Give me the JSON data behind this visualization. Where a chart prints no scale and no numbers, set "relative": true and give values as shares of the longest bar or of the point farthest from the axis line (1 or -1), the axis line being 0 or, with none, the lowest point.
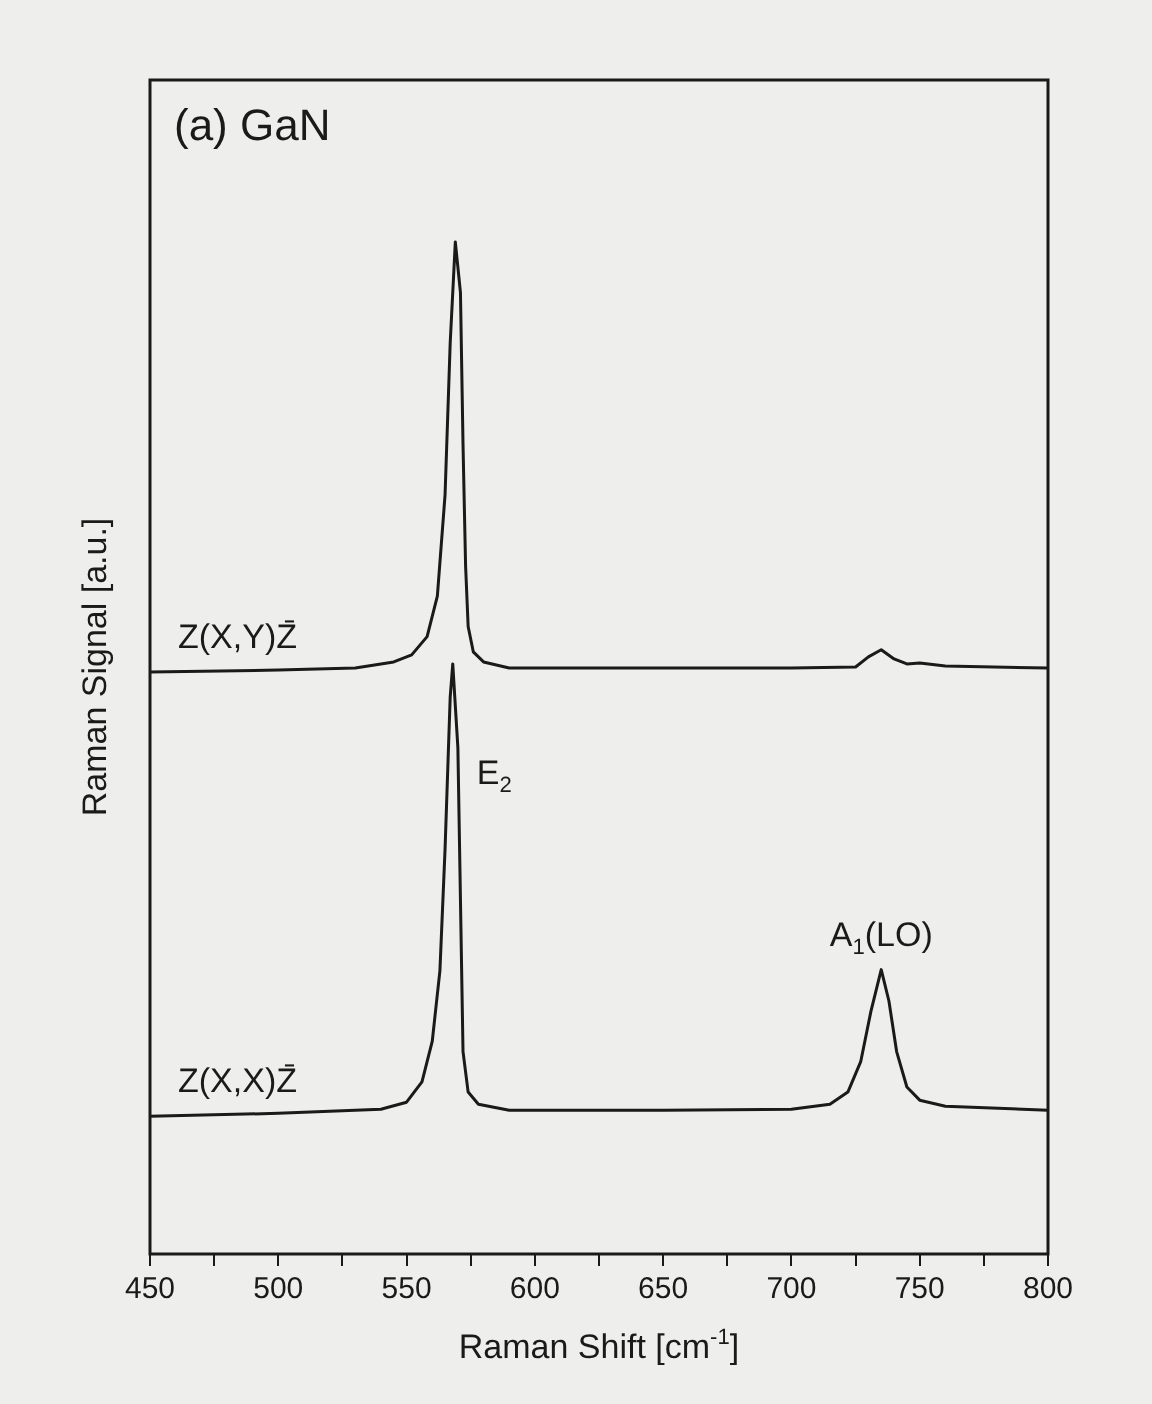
{
  "chart_data": {
    "type": "line",
    "title": "(a) GaN",
    "xlabel": "Raman Shift [cm$^{-1}$]",
    "ylabel": "Raman Signal [a.u.]",
    "relative": true,
    "grid": false,
    "legend": false,
    "marker": "none",
    "line_style": "solid",
    "xlim": [
      450,
      800
    ],
    "xticks": [
      450,
      {
        "value": 475,
        "label": null
      },
      500,
      {
        "value": 525,
        "label": null
      },
      550,
      {
        "value": 575,
        "label": null
      },
      600,
      {
        "value": 625,
        "label": null
      },
      650,
      {
        "value": 675,
        "label": null
      },
      700,
      {
        "value": 725,
        "label": null
      },
      750,
      {
        "value": 775,
        "label": null
      },
      800
    ],
    "series": [
      {
        "name": "Z(X,Y)Z̄",
        "color": "#1a1a1a",
        "x": [
          450,
          500,
          530,
          545,
          552,
          558,
          562,
          565,
          567,
          569,
          571,
          572,
          573,
          574,
          576,
          580,
          590,
          650,
          700,
          725,
          730,
          735,
          740,
          745,
          750,
          760,
          800
        ],
        "values": [
          0.575,
          0.577,
          0.579,
          0.585,
          0.592,
          0.61,
          0.65,
          0.75,
          0.9,
          1.0,
          0.95,
          0.8,
          0.68,
          0.62,
          0.595,
          0.585,
          0.579,
          0.579,
          0.579,
          0.58,
          0.59,
          0.597,
          0.588,
          0.583,
          0.584,
          0.581,
          0.579
        ]
      },
      {
        "name": "Z(X,X)Z̄",
        "color": "#1a1a1a",
        "x": [
          450,
          500,
          540,
          550,
          556,
          560,
          563,
          565,
          567,
          568,
          570,
          571,
          572,
          574,
          578,
          590,
          650,
          700,
          715,
          722,
          727,
          731,
          735,
          738,
          741,
          745,
          750,
          760,
          800
        ],
        "values": [
          0.136,
          0.139,
          0.143,
          0.15,
          0.17,
          0.21,
          0.28,
          0.4,
          0.55,
          0.583,
          0.5,
          0.35,
          0.2,
          0.16,
          0.148,
          0.142,
          0.142,
          0.143,
          0.148,
          0.16,
          0.19,
          0.24,
          0.281,
          0.25,
          0.2,
          0.165,
          0.152,
          0.146,
          0.142
        ]
      }
    ],
    "annotations": [
      {
        "text": "E$_{2}$",
        "x": 568,
        "y": 0.583
      },
      {
        "text": "A$_{1}$(LO)",
        "x": 735,
        "y": 0.281
      }
    ]
  }
}
